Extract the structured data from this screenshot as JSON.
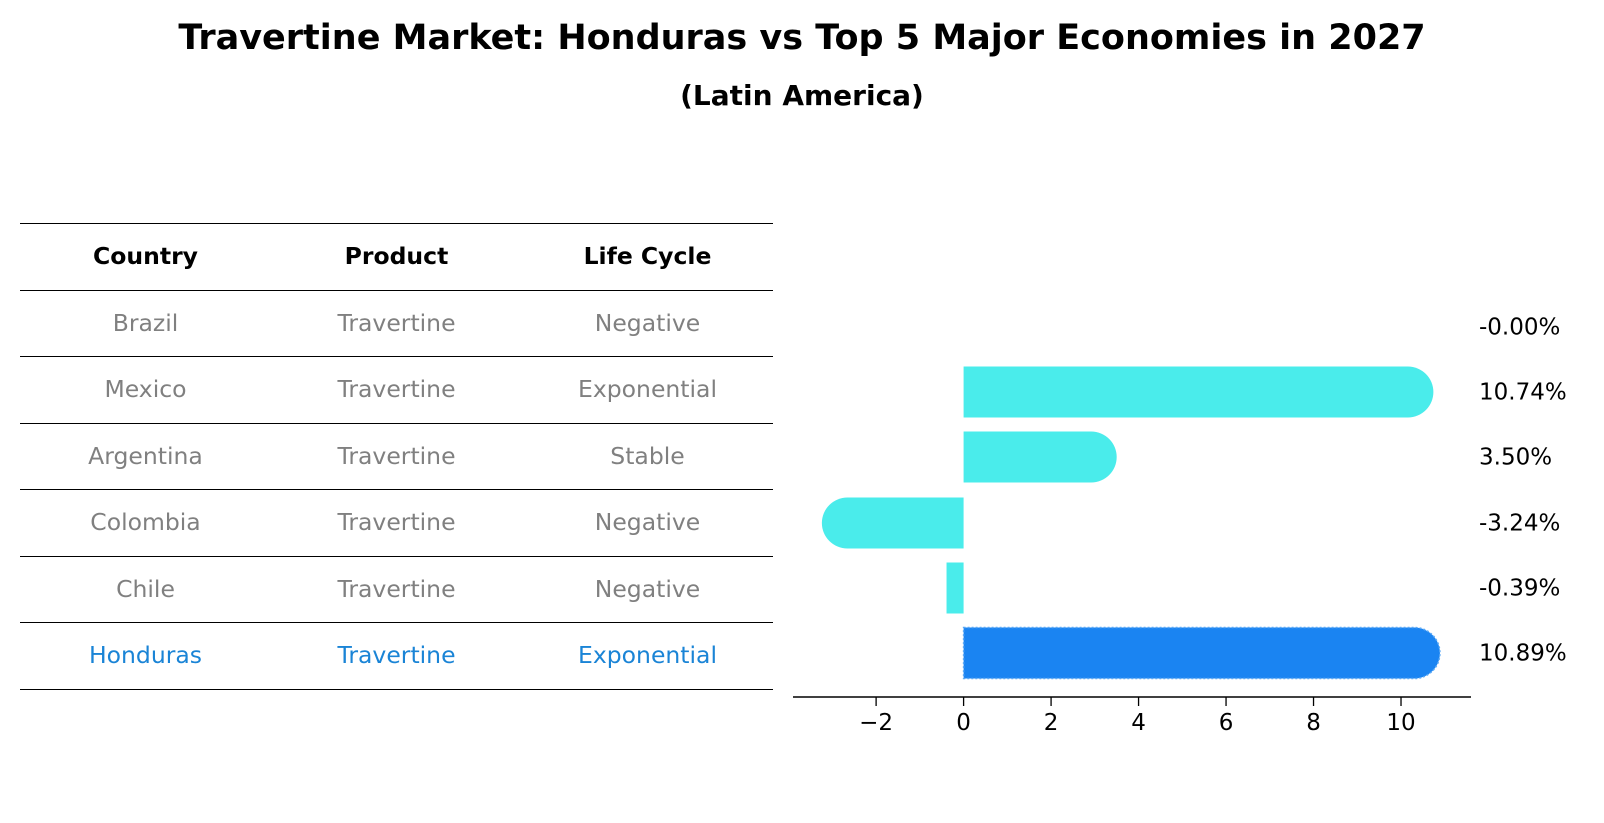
{
  "title": "Travertine Market: Honduras vs Top 5 Major Economies in 2027",
  "subtitle": "(Latin America)",
  "table": {
    "headers": [
      "Country",
      "Product",
      "Life Cycle"
    ],
    "rows": [
      [
        "Brazil",
        "Travertine",
        "Negative"
      ],
      [
        "Mexico",
        "Travertine",
        "Exponential"
      ],
      [
        "Argentina",
        "Travertine",
        "Stable"
      ],
      [
        "Colombia",
        "Travertine",
        "Negative"
      ],
      [
        "Chile",
        "Travertine",
        "Negative"
      ],
      [
        "Honduras",
        "Travertine",
        "Exponential"
      ]
    ],
    "highlight_row": 5,
    "text_color": "#808080",
    "highlight_color": "#1a84d6"
  },
  "chart_data": {
    "type": "bar",
    "orientation": "horizontal",
    "categories": [
      "Brazil",
      "Mexico",
      "Argentina",
      "Colombia",
      "Chile",
      "Honduras"
    ],
    "values": [
      -0.0,
      10.74,
      3.5,
      -3.24,
      -0.39,
      10.89
    ],
    "value_labels": [
      "-0.00%",
      "10.74%",
      "3.50%",
      "-3.24%",
      "-0.39%",
      "10.89%"
    ],
    "xlim": [
      -3.9,
      11.6
    ],
    "xticks": [
      -2,
      0,
      2,
      4,
      6,
      8,
      10
    ],
    "xtick_labels": [
      "−2",
      "0",
      "2",
      "4",
      "6",
      "8",
      "10"
    ],
    "colors": {
      "default": "#4aeceb",
      "highlight": "#1a84f2"
    },
    "highlight_index": 5,
    "grid": false
  }
}
